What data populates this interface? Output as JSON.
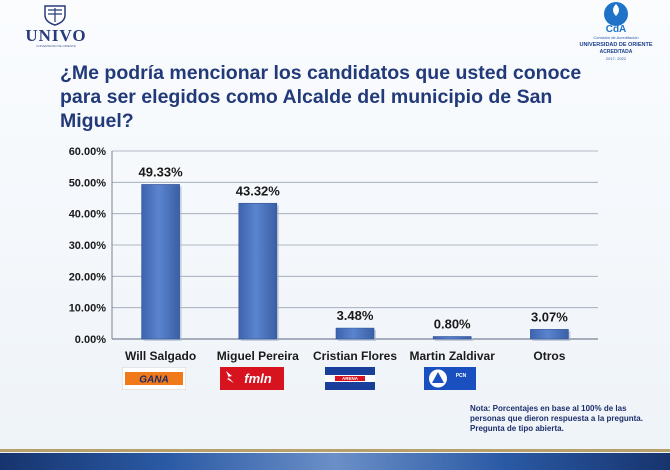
{
  "header": {
    "left_logo": {
      "name": "UNIVO",
      "subtitle": "UNIVERSIDAD DE ORIENTE"
    },
    "right_logo": {
      "line1": "Comisión de Acreditación",
      "line2": "UNIVERSIDAD DE ORIENTE",
      "line3": "ACREDITADA",
      "line4": "2017- 2022",
      "icon": "cda-accreditation-emblem"
    }
  },
  "title": "¿Me podría mencionar los candidatos que usted conoce para ser elegidos como Alcalde del municipio de San Miguel?",
  "chart_data": {
    "type": "bar",
    "title": "¿Me podría mencionar los candidatos que usted conoce para ser elegidos como Alcalde del municipio de San Miguel?",
    "categories": [
      "Will Salgado",
      "Miguel Pereira",
      "Cristian Flores",
      "Martin Zaldivar",
      "Otros"
    ],
    "values": [
      49.33,
      43.32,
      3.48,
      0.8,
      3.07
    ],
    "data_labels": [
      "49.33%",
      "43.32%",
      "3.48%",
      "0.80%",
      "3.07%"
    ],
    "y_ticks": [
      "0.00%",
      "10.00%",
      "20.00%",
      "30.00%",
      "40.00%",
      "50.00%",
      "60.00%"
    ],
    "ylim": [
      0,
      60
    ],
    "xlabel": "",
    "ylabel": "",
    "grid": true,
    "legend": "none",
    "bar_color": "#4f78c2"
  },
  "parties": [
    {
      "label": "GANA",
      "icon": "gana-logo",
      "color": "#f07a1a"
    },
    {
      "label": "fmln",
      "icon": "fmln-logo",
      "color": "#d6131f"
    },
    {
      "label": "ARENA",
      "icon": "arena-logo",
      "color": "#1a3f9a"
    },
    {
      "label": "PCN",
      "icon": "pcn-logo",
      "color": "#1a4fc0"
    }
  ],
  "note": "Nota: Porcentajes en base al 100% de las personas que dieron respuesta a la pregunta. Pregunta de tipo abierta."
}
